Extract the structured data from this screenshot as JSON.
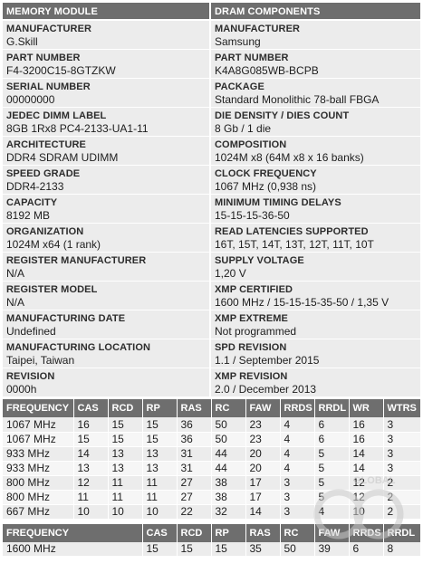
{
  "memory_module": {
    "header": "MEMORY MODULE",
    "items": [
      {
        "label": "MANUFACTURER",
        "value": "G.Skill"
      },
      {
        "label": "PART NUMBER",
        "value": "F4-3200C15-8GTZKW"
      },
      {
        "label": "SERIAL NUMBER",
        "value": "00000000"
      },
      {
        "label": "JEDEC DIMM LABEL",
        "value": "8GB 1Rx8 PC4-2133-UA1-11"
      },
      {
        "label": "ARCHITECTURE",
        "value": "DDR4 SDRAM UDIMM"
      },
      {
        "label": "SPEED GRADE",
        "value": "DDR4-2133"
      },
      {
        "label": "CAPACITY",
        "value": "8192 MB"
      },
      {
        "label": "ORGANIZATION",
        "value": "1024M x64 (1 rank)"
      },
      {
        "label": "REGISTER MANUFACTURER",
        "value": "N/A"
      },
      {
        "label": "REGISTER MODEL",
        "value": "N/A"
      },
      {
        "label": "MANUFACTURING DATE",
        "value": "Undefined"
      },
      {
        "label": "MANUFACTURING LOCATION",
        "value": "Taipei, Taiwan"
      },
      {
        "label": "REVISION",
        "value": "0000h"
      }
    ]
  },
  "dram_components": {
    "header": "DRAM COMPONENTS",
    "items": [
      {
        "label": "MANUFACTURER",
        "value": "Samsung"
      },
      {
        "label": "PART NUMBER",
        "value": "K4A8G085WB-BCPB"
      },
      {
        "label": "PACKAGE",
        "value": "Standard Monolithic 78-ball FBGA"
      },
      {
        "label": "DIE DENSITY / DIES COUNT",
        "value": "8 Gb / 1 die"
      },
      {
        "label": "COMPOSITION",
        "value": "1024M x8 (64M x8 x 16 banks)"
      },
      {
        "label": "CLOCK FREQUENCY",
        "value": "1067 MHz (0,938 ns)"
      },
      {
        "label": "MINIMUM TIMING DELAYS",
        "value": "15-15-15-36-50"
      },
      {
        "label": "READ LATENCIES SUPPORTED",
        "value": "16T, 15T, 14T, 13T, 12T, 11T, 10T"
      },
      {
        "label": "SUPPLY VOLTAGE",
        "value": "1,20 V"
      },
      {
        "label": "XMP CERTIFIED",
        "value": "1600 MHz / 15-15-15-35-50 / 1,35 V"
      },
      {
        "label": "XMP EXTREME",
        "value": "Not programmed"
      },
      {
        "label": "SPD REVISION",
        "value": "1.1 / September 2015"
      },
      {
        "label": "XMP REVISION",
        "value": "2.0 / December 2013"
      }
    ]
  },
  "jedec_timings": {
    "headers": [
      "FREQUENCY",
      "CAS",
      "RCD",
      "RP",
      "RAS",
      "RC",
      "FAW",
      "RRDS",
      "RRDL",
      "WR",
      "WTRS"
    ],
    "rows": [
      [
        "1067 MHz",
        "16",
        "15",
        "15",
        "36",
        "50",
        "23",
        "4",
        "6",
        "16",
        "3"
      ],
      [
        "1067 MHz",
        "15",
        "15",
        "15",
        "36",
        "50",
        "23",
        "4",
        "6",
        "16",
        "3"
      ],
      [
        "933 MHz",
        "14",
        "13",
        "13",
        "31",
        "44",
        "20",
        "4",
        "5",
        "14",
        "3"
      ],
      [
        "933 MHz",
        "13",
        "13",
        "13",
        "31",
        "44",
        "20",
        "4",
        "5",
        "14",
        "3"
      ],
      [
        "800 MHz",
        "12",
        "11",
        "11",
        "27",
        "38",
        "17",
        "3",
        "5",
        "12",
        "2"
      ],
      [
        "800 MHz",
        "11",
        "11",
        "11",
        "27",
        "38",
        "17",
        "3",
        "5",
        "12",
        "2"
      ],
      [
        "667 MHz",
        "10",
        "10",
        "10",
        "22",
        "32",
        "14",
        "3",
        "4",
        "10",
        "2"
      ]
    ]
  },
  "xmp_timings": {
    "headers": [
      "FREQUENCY",
      "CAS",
      "RCD",
      "RP",
      "RAS",
      "RC",
      "FAW",
      "RRDS",
      "RRDL"
    ],
    "rows": [
      [
        "1600 MHz",
        "15",
        "15",
        "15",
        "35",
        "50",
        "39",
        "6",
        "8"
      ]
    ]
  },
  "watermark": {
    "text": "GLOBAL",
    "brand": "gg"
  }
}
